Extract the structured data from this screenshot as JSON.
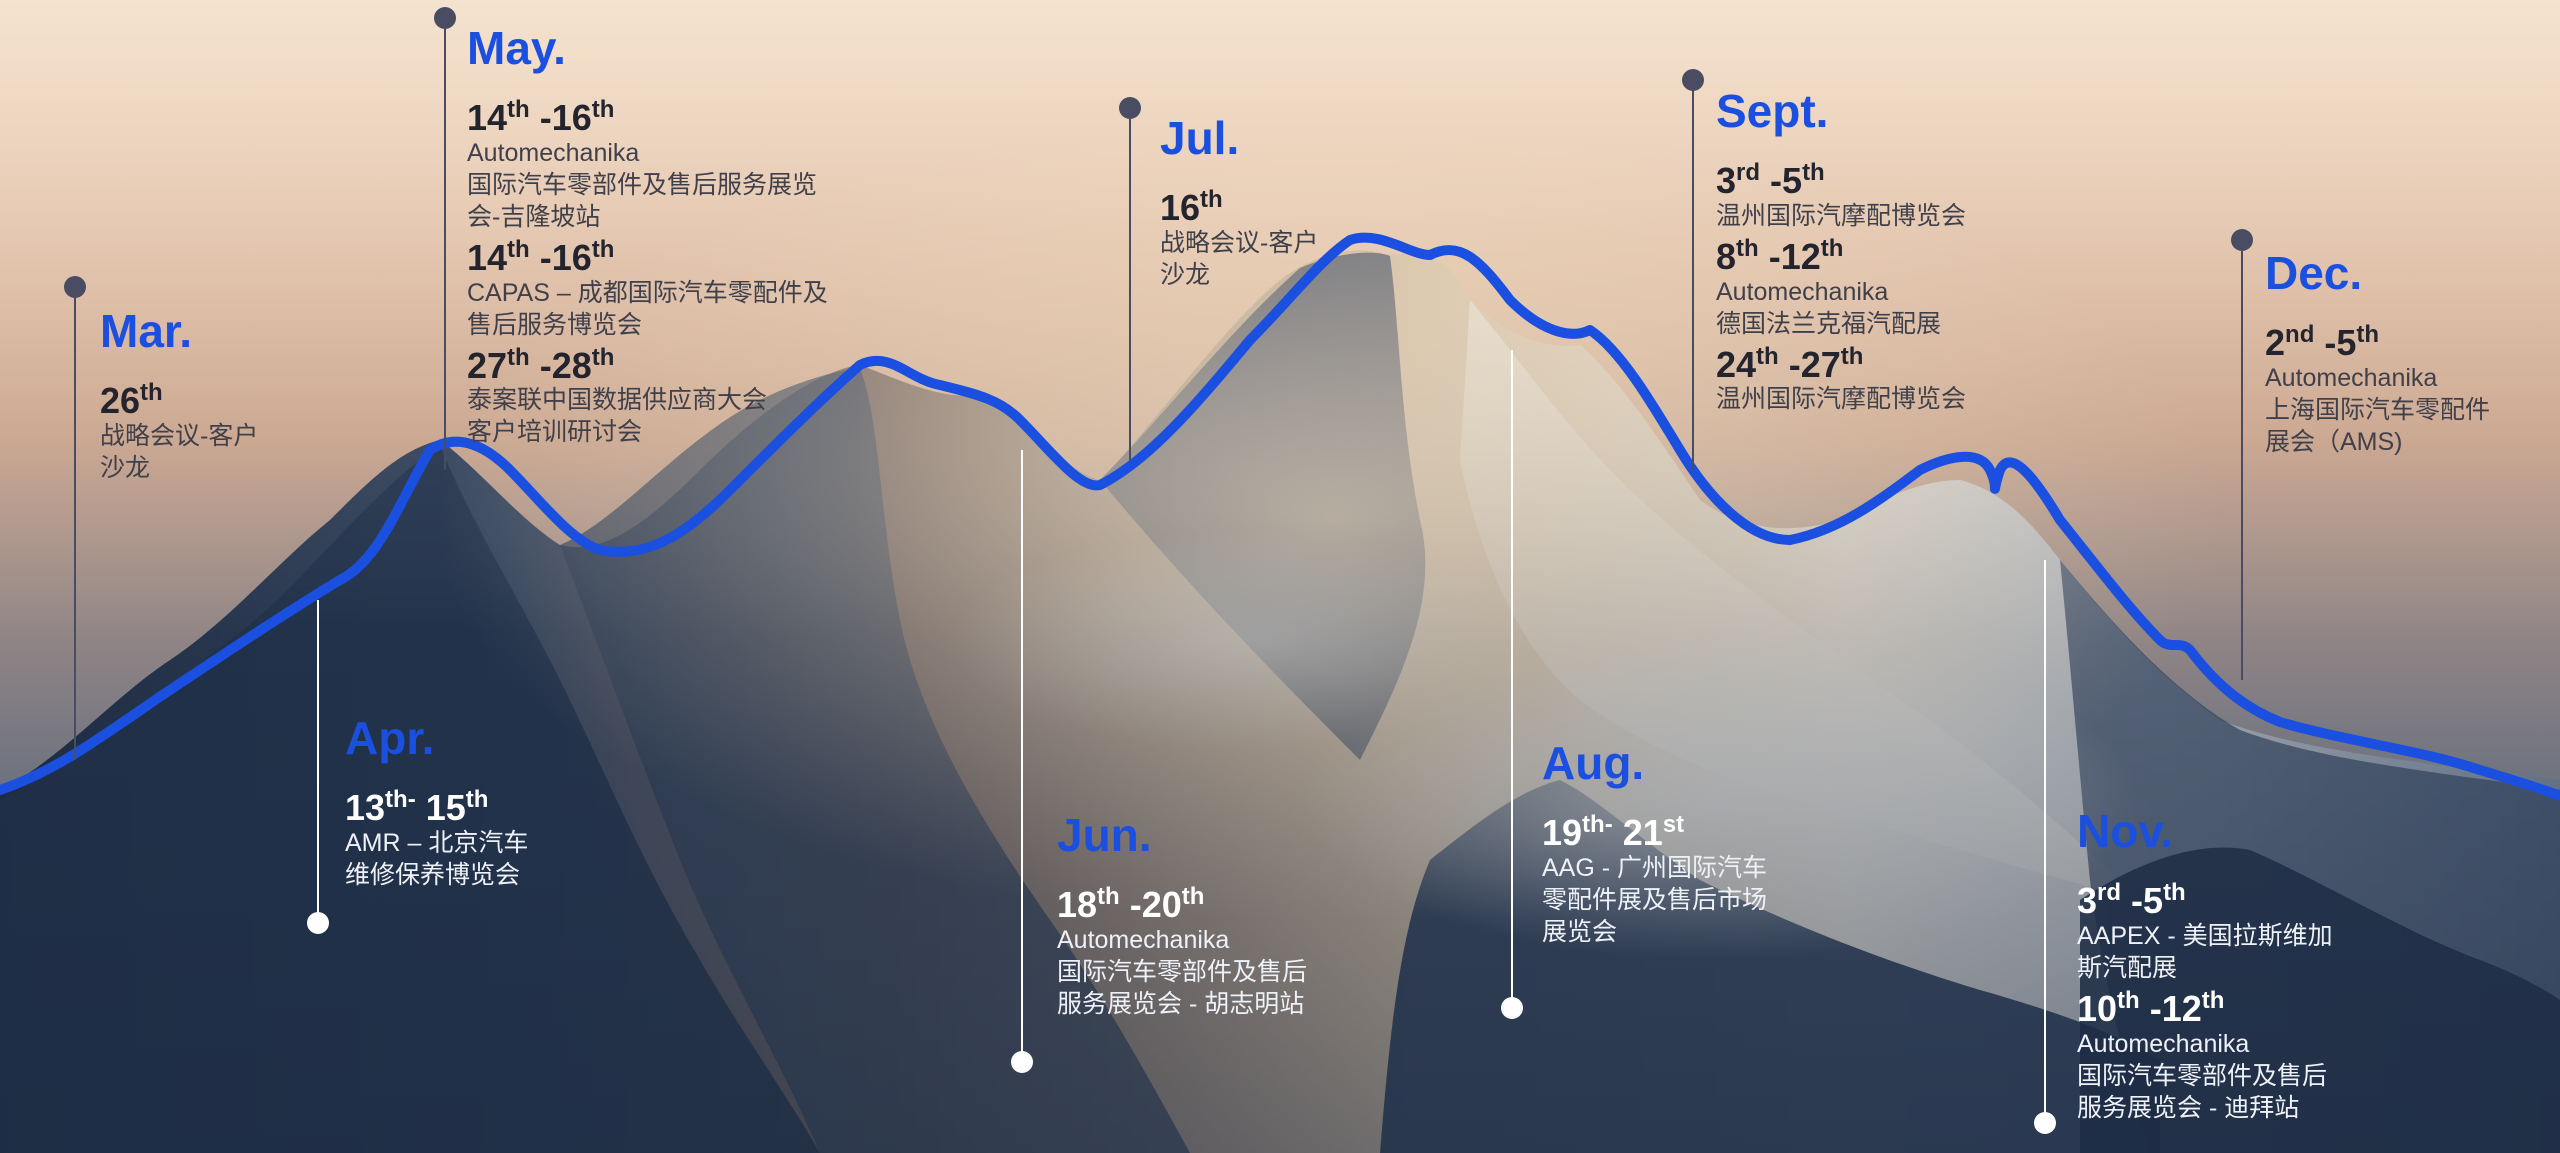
{
  "colors": {
    "accent": "#1a4fe0",
    "sky_top": "#f4e3cf",
    "sky_mid": "#e0b393",
    "sky_bottom": "#6f86a0",
    "rock_dark": "#23324a",
    "snow_light": "#f3ece0",
    "upper_pin": "#4a4d62",
    "lower_pin": "#ffffff"
  },
  "events": [
    {
      "month": "Mar.",
      "items": [
        {
          "start": "26",
          "start_sup": "th",
          "sep": "",
          "end": "",
          "end_sup": "",
          "lines": [
            "战略会议-客户",
            "沙龙"
          ]
        }
      ]
    },
    {
      "month": "Apr.",
      "items": [
        {
          "start": "13",
          "start_sup": "th-",
          "sep": " ",
          "end": "15",
          "end_sup": "th",
          "lines": [
            "AMR – 北京汽车",
            "维修保养博览会"
          ]
        }
      ]
    },
    {
      "month": "May.",
      "items": [
        {
          "start": "14",
          "start_sup": "th",
          "sep": " -",
          "end": "16",
          "end_sup": "th",
          "lines": [
            "Automechanika",
            "国际汽车零部件及售后服务展览",
            "会-吉隆坡站"
          ]
        },
        {
          "start": "14",
          "start_sup": "th",
          "sep": " -",
          "end": "16",
          "end_sup": "th",
          "lines": [
            "CAPAS – 成都国际汽车零配件及",
            "售后服务博览会"
          ]
        },
        {
          "start": "27",
          "start_sup": "th",
          "sep": " -",
          "end": "28",
          "end_sup": "th",
          "lines": [
            "泰案联中国数据供应商大会",
            "客户培训研讨会"
          ]
        }
      ]
    },
    {
      "month": "Jun.",
      "items": [
        {
          "start": "18",
          "start_sup": "th",
          "sep": " -",
          "end": "20",
          "end_sup": "th",
          "lines": [
            "Automechanika",
            "国际汽车零部件及售后",
            "服务展览会 - 胡志明站"
          ]
        }
      ]
    },
    {
      "month": "Jul.",
      "items": [
        {
          "start": "16",
          "start_sup": "th",
          "sep": "",
          "end": "",
          "end_sup": "",
          "lines": [
            "战略会议-客户",
            "沙龙"
          ]
        }
      ]
    },
    {
      "month": "Aug.",
      "items": [
        {
          "start": "19",
          "start_sup": "th-",
          "sep": " ",
          "end": "21",
          "end_sup": "st",
          "lines": [
            "AAG - 广州国际汽车",
            "零配件展及售后市场",
            "展览会"
          ]
        }
      ]
    },
    {
      "month": "Sept.",
      "items": [
        {
          "start": "3",
          "start_sup": "rd",
          "sep": " -",
          "end": "5",
          "end_sup": "th",
          "lines": [
            "温州国际汽摩配博览会"
          ]
        },
        {
          "start": "8",
          "start_sup": "th",
          "sep": " -",
          "end": "12",
          "end_sup": "th",
          "lines": [
            "Automechanika",
            "德国法兰克福汽配展"
          ]
        },
        {
          "start": "24",
          "start_sup": "th",
          "sep": " -",
          "end": "27",
          "end_sup": "th",
          "lines": [
            "温州国际汽摩配博览会"
          ]
        }
      ]
    },
    {
      "month": "Nov.",
      "items": [
        {
          "start": "3",
          "start_sup": "rd",
          "sep": " -",
          "end": "5",
          "end_sup": "th",
          "lines": [
            "AAPEX - 美国拉斯维加",
            "斯汽配展"
          ]
        },
        {
          "start": "10",
          "start_sup": "th",
          "sep": " -",
          "end": "12",
          "end_sup": "th",
          "lines": [
            "Automechanika",
            "国际汽车零部件及售后",
            "服务展览会 - 迪拜站"
          ]
        }
      ]
    },
    {
      "month": "Dec.",
      "items": [
        {
          "start": "2",
          "start_sup": "nd",
          "sep": " -",
          "end": "5",
          "end_sup": "th",
          "lines": [
            "Automechanika",
            "上海国际汽车零配件",
            "展会（AMS)"
          ]
        }
      ]
    }
  ]
}
